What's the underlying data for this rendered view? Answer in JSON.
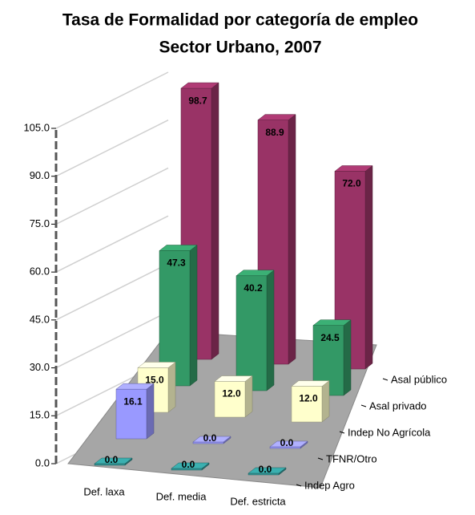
{
  "chart_data": {
    "type": "bar3d",
    "title": "Tasa de Formalidad por categoría de empleo",
    "subtitle": "Sector Urbano, 2007",
    "categories": [
      "Def. laxa",
      "Def. media",
      "Def. estricta"
    ],
    "series": [
      {
        "name": "Indep Agro",
        "color": "#339999",
        "values": [
          0,
          0,
          0
        ],
        "value_labels": [
          "0.0",
          "0.0",
          "0.0"
        ]
      },
      {
        "name": "TFNR/Otro",
        "color": "#9999ff",
        "values": [
          16.1,
          0,
          0
        ],
        "value_labels": [
          "16.1",
          "0.0",
          "0.0"
        ]
      },
      {
        "name": "Indep No Agrícola",
        "color": "#ffffcc",
        "values": [
          15,
          12,
          12
        ],
        "value_labels": [
          "15.0",
          "12.0",
          "12.0"
        ]
      },
      {
        "name": "Asal privado",
        "color": "#339966",
        "values": [
          47.3,
          40.2,
          24.5
        ],
        "value_labels": [
          "47.3",
          "40.2",
          "24.5"
        ]
      },
      {
        "name": "Asal público",
        "color": "#993366",
        "values": [
          98.7,
          88.9,
          72
        ],
        "value_labels": [
          "98.7",
          "88.9",
          "72.0"
        ]
      }
    ],
    "ylim": [
      0,
      105
    ],
    "yticks": [
      {
        "value": 0,
        "label": "0.0"
      },
      {
        "value": 15,
        "label": "15.0"
      },
      {
        "value": 30,
        "label": "30.0"
      },
      {
        "value": 45,
        "label": "45.0"
      },
      {
        "value": 60,
        "label": "60.0"
      },
      {
        "value": 75,
        "label": "75.0"
      },
      {
        "value": 90,
        "label": "90.0"
      },
      {
        "value": 105,
        "label": "105.0"
      }
    ],
    "grid": true
  }
}
